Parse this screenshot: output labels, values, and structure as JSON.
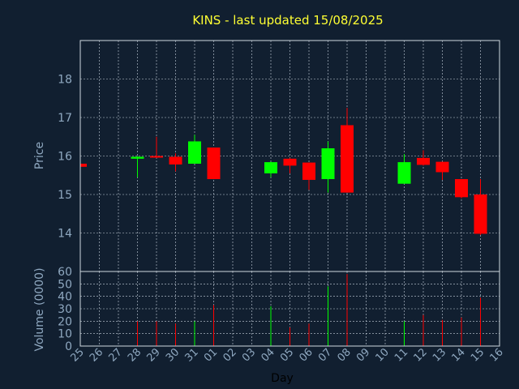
{
  "chart_data": {
    "type": "candlestick",
    "title": "KINS - last updated 15/08/2025",
    "xlabel": "Day",
    "categories": [
      "25",
      "26",
      "27",
      "28",
      "29",
      "30",
      "31",
      "01",
      "02",
      "03",
      "04",
      "05",
      "06",
      "07",
      "08",
      "09",
      "10",
      "11",
      "12",
      "13",
      "14",
      "15",
      "16"
    ],
    "price_panel": {
      "ylabel": "Price",
      "yticks": [
        "14",
        "15",
        "16",
        "17",
        "18"
      ],
      "ylim": [
        13.0,
        19.0
      ],
      "candles": [
        {
          "day": "25",
          "open": 15.8,
          "high": 15.8,
          "low": 15.72,
          "close": 15.72
        },
        {
          "day": "28",
          "open": 15.93,
          "high": 16.0,
          "low": 15.45,
          "close": 15.98
        },
        {
          "day": "29",
          "open": 16.0,
          "high": 16.5,
          "low": 15.95,
          "close": 15.97
        },
        {
          "day": "30",
          "open": 15.98,
          "high": 16.07,
          "low": 15.6,
          "close": 15.78
        },
        {
          "day": "31",
          "open": 15.8,
          "high": 16.55,
          "low": 15.8,
          "close": 16.38
        },
        {
          "day": "01",
          "open": 16.22,
          "high": 16.22,
          "low": 15.4,
          "close": 15.4
        },
        {
          "day": "04",
          "open": 15.55,
          "high": 15.85,
          "low": 15.45,
          "close": 15.84
        },
        {
          "day": "05",
          "open": 15.93,
          "high": 15.95,
          "low": 15.55,
          "close": 15.75
        },
        {
          "day": "06",
          "open": 15.83,
          "high": 15.83,
          "low": 15.12,
          "close": 15.38
        },
        {
          "day": "07",
          "open": 15.4,
          "high": 16.38,
          "low": 15.05,
          "close": 16.2
        },
        {
          "day": "08",
          "open": 16.8,
          "high": 17.25,
          "low": 15.05,
          "close": 15.05
        },
        {
          "day": "11",
          "open": 15.28,
          "high": 16.05,
          "low": 15.28,
          "close": 15.84
        },
        {
          "day": "12",
          "open": 15.95,
          "high": 16.15,
          "low": 15.75,
          "close": 15.77
        },
        {
          "day": "13",
          "open": 15.85,
          "high": 15.85,
          "low": 15.38,
          "close": 15.58
        },
        {
          "day": "14",
          "open": 15.4,
          "high": 15.4,
          "low": 14.9,
          "close": 14.93
        },
        {
          "day": "15",
          "open": 15.0,
          "high": 15.4,
          "low": 13.95,
          "close": 13.98
        }
      ]
    },
    "volume_panel": {
      "ylabel": "Volume (0000)",
      "yticks": [
        "0",
        "10",
        "20",
        "30",
        "40",
        "50",
        "60"
      ],
      "ylim": [
        0,
        60
      ],
      "bars": [
        {
          "day": "28",
          "value": 20,
          "color": "red"
        },
        {
          "day": "29",
          "value": 20,
          "color": "red"
        },
        {
          "day": "30",
          "value": 18,
          "color": "red"
        },
        {
          "day": "31",
          "value": 20,
          "color": "green"
        },
        {
          "day": "01",
          "value": 33,
          "color": "red"
        },
        {
          "day": "04",
          "value": 32,
          "color": "green"
        },
        {
          "day": "05",
          "value": 15,
          "color": "red"
        },
        {
          "day": "06",
          "value": 18,
          "color": "red"
        },
        {
          "day": "07",
          "value": 48,
          "color": "green"
        },
        {
          "day": "08",
          "value": 58,
          "color": "red"
        },
        {
          "day": "11",
          "value": 20,
          "color": "green"
        },
        {
          "day": "12",
          "value": 25,
          "color": "red"
        },
        {
          "day": "13",
          "value": 21,
          "color": "red"
        },
        {
          "day": "14",
          "value": 23,
          "color": "red"
        },
        {
          "day": "15",
          "value": 39,
          "color": "red"
        }
      ]
    },
    "grid": true,
    "colors": {
      "background": "#111f30",
      "up": "#00ff00",
      "down": "#ff0000",
      "grid": "#c8d2dc",
      "title": "#ffff33",
      "axis_text": "#8fa8c0"
    }
  }
}
